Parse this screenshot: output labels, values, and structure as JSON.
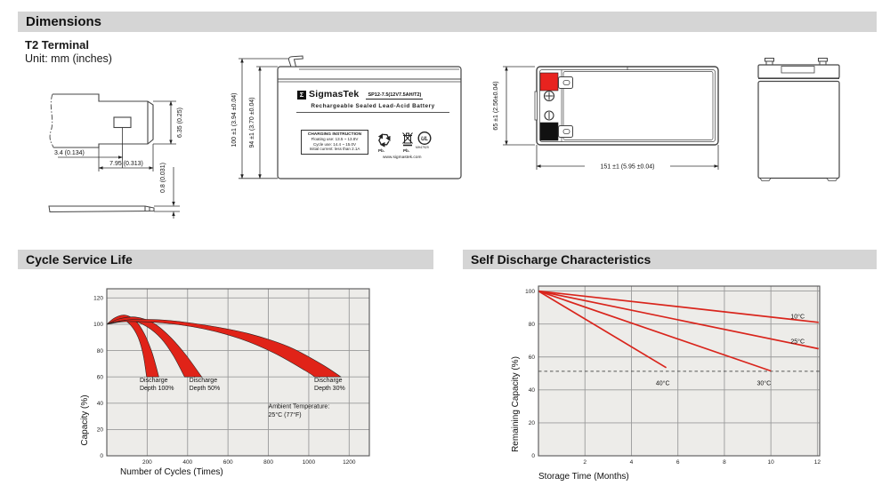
{
  "colors": {
    "header_bar": "#d5d5d5",
    "plot_bg": "#edece9",
    "grid": "#9a9a9a",
    "band": "#e02318",
    "red": "#d9251c",
    "terminal_red": "#e8231f",
    "terminal_black": "#111111"
  },
  "dimensions_section": {
    "title": "Dimensions",
    "subtitle": "T2 Terminal",
    "unit_note": "Unit: mm (inches)",
    "terminal_detail": {
      "hole_offset": "3.4 (0.134)",
      "tab_length": "7.95 (0.313)",
      "tab_width": "6.35 (0.25)",
      "thickness": "0.8 (0.031)"
    },
    "front_view": {
      "height_total": "100 ±1 (3.94 ±0.04)",
      "height_case": "94 ±1 (3.70 ±0.04)"
    },
    "top_view": {
      "depth": "65 ±1 (2.56±0.04)",
      "length": "151 ±1 (5.95 ±0.04)"
    },
    "label": {
      "logo_glyph": "Σ",
      "brand": "SigmasTek",
      "model": "SP12-7.5(12V7.5AH/T2)",
      "product": "Rechargeable Sealed Lead-Acid Battery",
      "charging_title": "CHARGING INSTRUCTION",
      "charging_lines": [
        "Floating use: 13.5 ~ 13.8V",
        "Cycle use: 14.4 ~ 15.0V",
        "Initial current: less than 2.1A"
      ],
      "pb1": "Pb.",
      "pb2": "Pb.",
      "ul_text": "UL",
      "ul_code": "MH47929",
      "website": "www.sigmastek.com"
    }
  },
  "cycle_section": {
    "title": "Cycle Service Life"
  },
  "self_discharge_section": {
    "title": "Self Discharge Characteristics"
  },
  "chart_data": [
    {
      "type": "area",
      "title": "Cycle Service Life",
      "xlabel": "Number of Cycles (Times)",
      "ylabel": "Capacity (%)",
      "xlim": [
        0,
        1300
      ],
      "ylim": [
        0,
        127
      ],
      "xticks": [
        200,
        400,
        600,
        800,
        1000,
        1200
      ],
      "yticks": [
        0,
        20,
        40,
        60,
        80,
        100,
        120
      ],
      "grid": true,
      "legend_position": "none",
      "bands": [
        {
          "name": "Discharge Depth 100%",
          "label_lines": [
            "Discharge",
            "Depth 100%"
          ],
          "label_x": 163,
          "label_y": 56,
          "upper": [
            [
              0,
              100
            ],
            [
              40,
              105
            ],
            [
              90,
              107
            ],
            [
              140,
              103
            ],
            [
              185,
              93
            ],
            [
              225,
              78
            ],
            [
              258,
              60
            ]
          ],
          "lower": [
            [
              0,
              100
            ],
            [
              40,
              102
            ],
            [
              80,
              103.5
            ],
            [
              120,
              99
            ],
            [
              155,
              90
            ],
            [
              180,
              77
            ],
            [
              197,
              60
            ]
          ]
        },
        {
          "name": "Discharge Depth 50%",
          "label_lines": [
            "Discharge",
            "Depth 50%"
          ],
          "label_x": 408,
          "label_y": 56,
          "upper": [
            [
              0,
              100
            ],
            [
              60,
              104
            ],
            [
              140,
              105.5
            ],
            [
              230,
              101
            ],
            [
              310,
              91
            ],
            [
              390,
              77
            ],
            [
              470,
              60
            ]
          ],
          "lower": [
            [
              0,
              100
            ],
            [
              50,
              102
            ],
            [
              120,
              103
            ],
            [
              200,
              98
            ],
            [
              270,
              89
            ],
            [
              330,
              76
            ],
            [
              385,
              60
            ]
          ]
        },
        {
          "name": "Discharge Depth 30%",
          "label_lines": [
            "Discharge",
            "Depth 30%"
          ],
          "label_x": 1027,
          "label_y": 56,
          "upper": [
            [
              0,
              100
            ],
            [
              120,
              103.5
            ],
            [
              300,
              103
            ],
            [
              500,
              99
            ],
            [
              700,
              93
            ],
            [
              900,
              83
            ],
            [
              1060,
              70
            ],
            [
              1160,
              60
            ]
          ],
          "lower": [
            [
              0,
              100
            ],
            [
              100,
              102
            ],
            [
              280,
              101
            ],
            [
              480,
              96.5
            ],
            [
              660,
              89
            ],
            [
              830,
              78
            ],
            [
              980,
              65
            ],
            [
              1030,
              60
            ]
          ]
        }
      ],
      "annotation_lines": [
        "Ambient Temperature:",
        "25°C (77°F)"
      ],
      "annotation_x": 800,
      "annotation_y": 36
    },
    {
      "type": "line",
      "title": "Self Discharge Characteristics",
      "xlabel": "Storage Time (Months)",
      "ylabel": "Remaining Capacity (%)",
      "xlim": [
        0,
        12.1
      ],
      "ylim": [
        0,
        103
      ],
      "xticks": [
        2,
        4,
        6,
        8,
        10,
        12
      ],
      "yticks": [
        0,
        20,
        40,
        60,
        80,
        100
      ],
      "grid": true,
      "legend_position": "inline-labels",
      "series": [
        {
          "name": "10°C",
          "points": [
            [
              0,
              100
            ],
            [
              12.05,
              81
            ]
          ],
          "label_x": 11.15,
          "label_y": 84.5
        },
        {
          "name": "25°C",
          "points": [
            [
              0,
              100
            ],
            [
              12.05,
              65
            ]
          ],
          "label_x": 11.15,
          "label_y": 69.5
        },
        {
          "name": "30°C",
          "points": [
            [
              0,
              100
            ],
            [
              10,
              51.5
            ]
          ],
          "label_x": 9.7,
          "label_y": 44
        },
        {
          "name": "40°C",
          "points": [
            [
              0,
              100
            ],
            [
              5.5,
              53.5
            ]
          ],
          "label_x": 5.35,
          "label_y": 44
        }
      ],
      "threshold_y": 51.3
    }
  ]
}
